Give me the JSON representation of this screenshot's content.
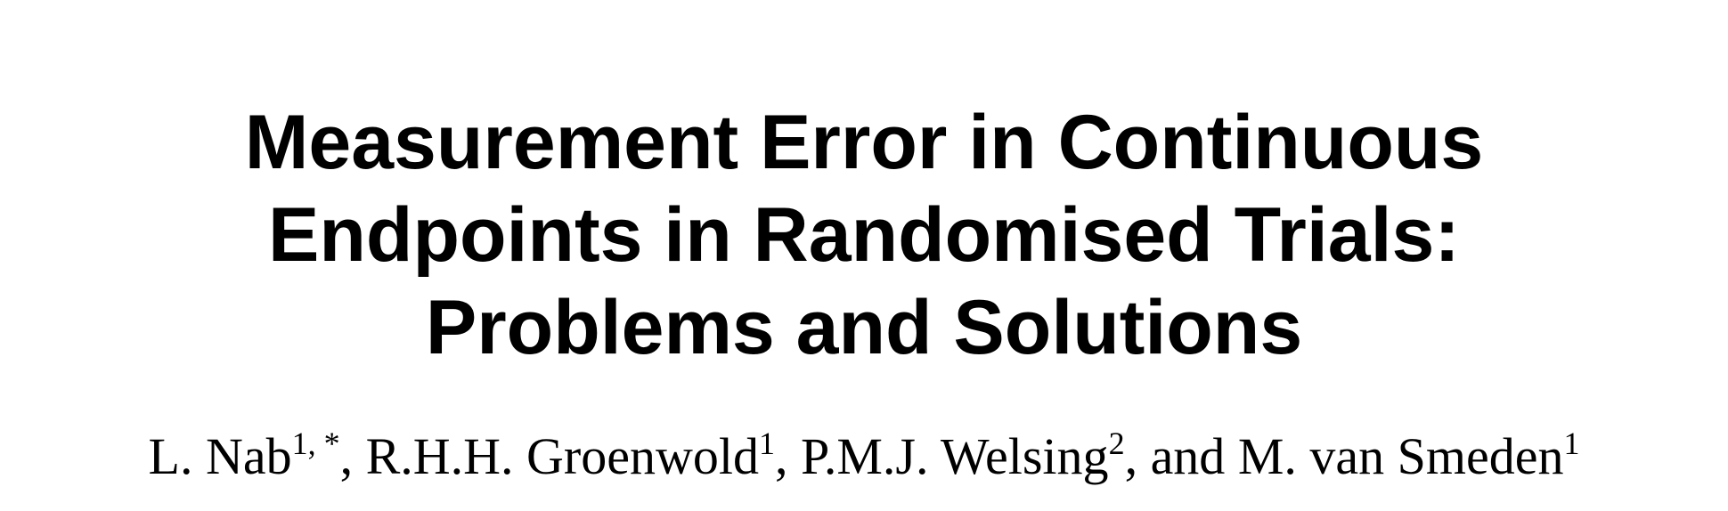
{
  "paper": {
    "title_lines": [
      "Measurement Error in Continuous",
      "Endpoints in Randomised Trials:",
      "Problems and Solutions"
    ],
    "authors": [
      {
        "name": "L. Nab",
        "sup": "1, *",
        "sep": ", "
      },
      {
        "name": "R.H.H. Groenwold",
        "sup": "1",
        "sep": ", "
      },
      {
        "name": "P.M.J. Welsing",
        "sup": "2",
        "sep": ", and "
      },
      {
        "name": "M. van Smeden",
        "sup": "1",
        "sep": ""
      }
    ]
  }
}
